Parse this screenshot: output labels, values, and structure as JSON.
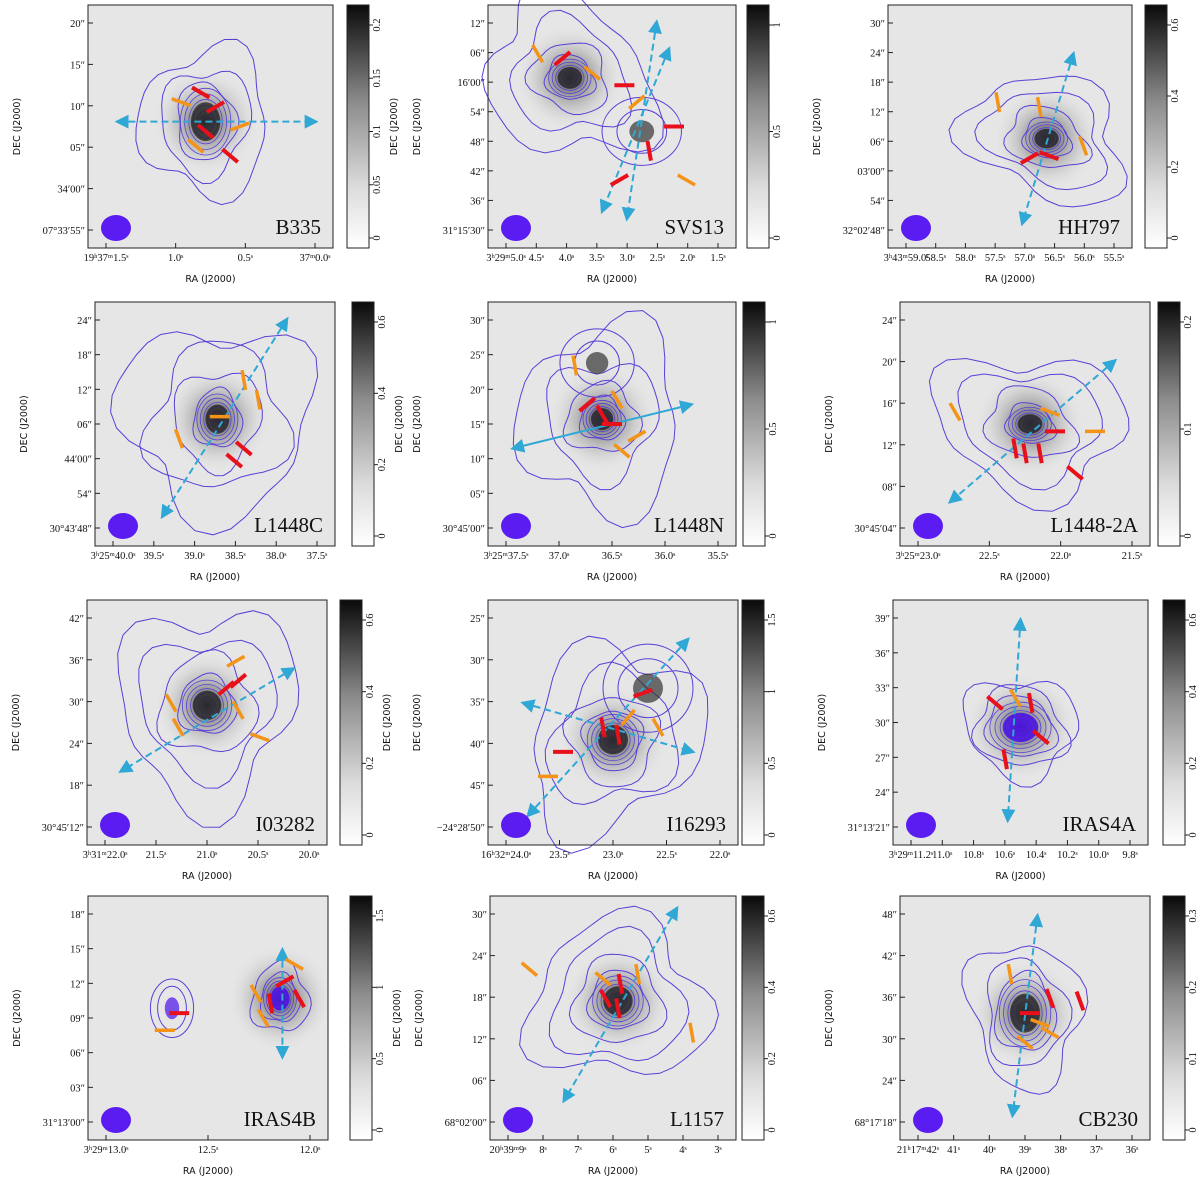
{
  "figure": {
    "ra_axis_label": "RA (J2000)",
    "dec_axis_label": "DEC (J2000)",
    "colorbar_label": "DEC (J2000)",
    "panels": [
      {
        "name": "B335",
        "x_ticks": [
          "19h37m1.5s",
          "1.0s",
          "0.5s",
          "37m0.0s"
        ],
        "y_ticks": [
          "20″",
          "15″",
          "10″",
          "05″",
          "34′00″",
          "07°33′55″"
        ],
        "cbar_ticks": [
          "0.2",
          "0.15",
          "0.1",
          "0.05",
          "0"
        ],
        "cbar_labelled": true
      },
      {
        "name": "SVS13",
        "x_ticks": [
          "3h29m5.0s",
          "4.5s",
          "4.0s",
          "3.5s",
          "3.0s",
          "2.5s",
          "2.0s",
          "1.5s"
        ],
        "y_ticks": [
          "12″",
          "06″",
          "16′00″",
          "54″",
          "48″",
          "42″",
          "36″",
          "31°15′30″"
        ],
        "cbar_ticks": [
          "1",
          "0.5",
          "0"
        ],
        "cbar_labelled": false
      },
      {
        "name": "HH797",
        "x_ticks": [
          "3h43m59.0s",
          "58.5s",
          "58.0s",
          "57.5s",
          "57.0s",
          "56.5s",
          "56.0s",
          "55.5s"
        ],
        "y_ticks": [
          "30″",
          "24″",
          "18″",
          "12″",
          "06″",
          "03′00″",
          "54″",
          "32°02′48″"
        ],
        "cbar_ticks": [
          "0.6",
          "0.4",
          "0.2",
          "0"
        ],
        "cbar_labelled": false
      },
      {
        "name": "L1448C",
        "x_ticks": [
          "3h25m40.0s",
          "39.5s",
          "39.0s",
          "38.5s",
          "38.0s",
          "37.5s"
        ],
        "y_ticks": [
          "24″",
          "18″",
          "12″",
          "06″",
          "44′00″",
          "54″",
          "30°43′48″"
        ],
        "cbar_ticks": [
          "0.6",
          "0.4",
          "0.2",
          "0"
        ],
        "cbar_labelled": true
      },
      {
        "name": "L1448N",
        "x_ticks": [
          "3h25m37.5s",
          "37.0s",
          "36.5s",
          "36.0s",
          "35.5s"
        ],
        "y_ticks": [
          "30″",
          "25″",
          "20″",
          "15″",
          "10″",
          "05″",
          "30°45′00″"
        ],
        "cbar_ticks": [
          "1",
          "0.5",
          "0"
        ],
        "cbar_labelled": false
      },
      {
        "name": "L1448-2A",
        "x_ticks": [
          "3h25m23.0s",
          "22.5s",
          "22.0s",
          "21.5s"
        ],
        "y_ticks": [
          "24″",
          "20″",
          "16″",
          "12″",
          "08″",
          "30°45′04″"
        ],
        "cbar_ticks": [
          "0.2",
          "0.1",
          "0"
        ],
        "cbar_labelled": false
      },
      {
        "name": "I03282",
        "x_ticks": [
          "3h31m22.0s",
          "21.5s",
          "21.0s",
          "20.5s",
          "20.0s"
        ],
        "y_ticks": [
          "42″",
          "36″",
          "30″",
          "24″",
          "18″",
          "30°45′12″"
        ],
        "cbar_ticks": [
          "0.6",
          "0.4",
          "0.2",
          "0"
        ],
        "cbar_labelled": true
      },
      {
        "name": "I16293",
        "x_ticks": [
          "16h32m24.0s",
          "23.5s",
          "23.0s",
          "22.5s",
          "22.0s"
        ],
        "y_ticks": [
          "25″",
          "30″",
          "35″",
          "40″",
          "45″",
          "−24°28′50″"
        ],
        "cbar_ticks": [
          "1.5",
          "1",
          "0.5",
          "0"
        ],
        "cbar_labelled": false
      },
      {
        "name": "IRAS4A",
        "x_ticks": [
          "3h29m11.2s",
          "11.0s",
          "10.8s",
          "10.6s",
          "10.4s",
          "10.2s",
          "10.0s",
          "9.8s"
        ],
        "y_ticks": [
          "39″",
          "36″",
          "33″",
          "30″",
          "27″",
          "24″",
          "31°13′21″"
        ],
        "cbar_ticks": [
          "0.6",
          "0.4",
          "0.2",
          "0"
        ],
        "cbar_labelled": false
      },
      {
        "name": "IRAS4B",
        "x_ticks": [
          "3h29m13.0s",
          "12.5s",
          "12.0s"
        ],
        "y_ticks": [
          "18″",
          "15″",
          "12″",
          "09″",
          "06″",
          "03″",
          "31°13′00″"
        ],
        "cbar_ticks": [
          "1.5",
          "1",
          "0.5",
          "0"
        ],
        "cbar_labelled": true
      },
      {
        "name": "L1157",
        "x_ticks": [
          "20h39m9s",
          "8s",
          "7s",
          "6s",
          "5s",
          "4s",
          "3s"
        ],
        "y_ticks": [
          "30″",
          "24″",
          "18″",
          "12″",
          "06″",
          "68°02′00″"
        ],
        "cbar_ticks": [
          "0.6",
          "0.4",
          "0.2",
          "0"
        ],
        "cbar_labelled": false
      },
      {
        "name": "CB230",
        "x_ticks": [
          "21h17m42s",
          "41s",
          "40s",
          "39s",
          "38s",
          "37s",
          "36s"
        ],
        "y_ticks": [
          "48″",
          "42″",
          "36″",
          "30″",
          "24″",
          "68°17′18″"
        ],
        "cbar_ticks": [
          "0.3",
          "0.2",
          "0.1",
          "0"
        ],
        "cbar_labelled": false
      }
    ]
  },
  "colors": {
    "contour": "#5b3fd6",
    "core": "#4a10e8",
    "beam": "#5a1cf0",
    "outflow": "#2fa8d6",
    "vector_red": "#e8101a",
    "vector_orange": "#f39419",
    "image_background": "#e6e6e6",
    "frame": "#222222"
  }
}
